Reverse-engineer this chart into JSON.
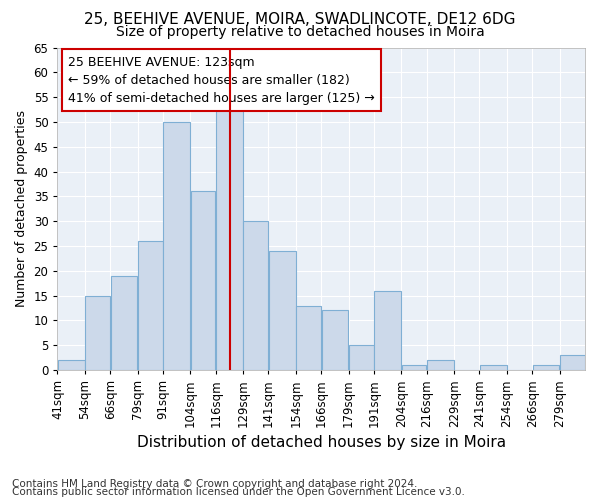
{
  "title1": "25, BEEHIVE AVENUE, MOIRA, SWADLINCOTE, DE12 6DG",
  "title2": "Size of property relative to detached houses in Moira",
  "xlabel": "Distribution of detached houses by size in Moira",
  "ylabel": "Number of detached properties",
  "annotation_line1": "25 BEEHIVE AVENUE: 123sqm",
  "annotation_line2": "← 59% of detached houses are smaller (182)",
  "annotation_line3": "41% of semi-detached houses are larger (125) →",
  "footnote1": "Contains HM Land Registry data © Crown copyright and database right 2024.",
  "footnote2": "Contains public sector information licensed under the Open Government Licence v3.0.",
  "bar_edges": [
    41,
    54,
    66,
    79,
    91,
    104,
    116,
    129,
    141,
    154,
    166,
    179,
    191,
    204,
    216,
    229,
    241,
    254,
    266,
    279,
    291
  ],
  "bar_heights": [
    2,
    15,
    19,
    26,
    50,
    36,
    53,
    30,
    24,
    13,
    12,
    5,
    16,
    1,
    2,
    0,
    1,
    0,
    1,
    3
  ],
  "bar_color": "#ccd9ea",
  "bar_edge_color": "#7fafd4",
  "property_size": 123,
  "vline_color": "#cc0000",
  "background_color": "#eaf0f7",
  "ylim": [
    0,
    65
  ],
  "yticks": [
    0,
    5,
    10,
    15,
    20,
    25,
    30,
    35,
    40,
    45,
    50,
    55,
    60,
    65
  ],
  "annotation_box_facecolor": "#ffffff",
  "annotation_box_edgecolor": "#cc0000",
  "title1_fontsize": 11,
  "title2_fontsize": 10,
  "xlabel_fontsize": 11,
  "ylabel_fontsize": 9,
  "tick_fontsize": 8.5,
  "annotation_fontsize": 9,
  "footnote_fontsize": 7.5
}
